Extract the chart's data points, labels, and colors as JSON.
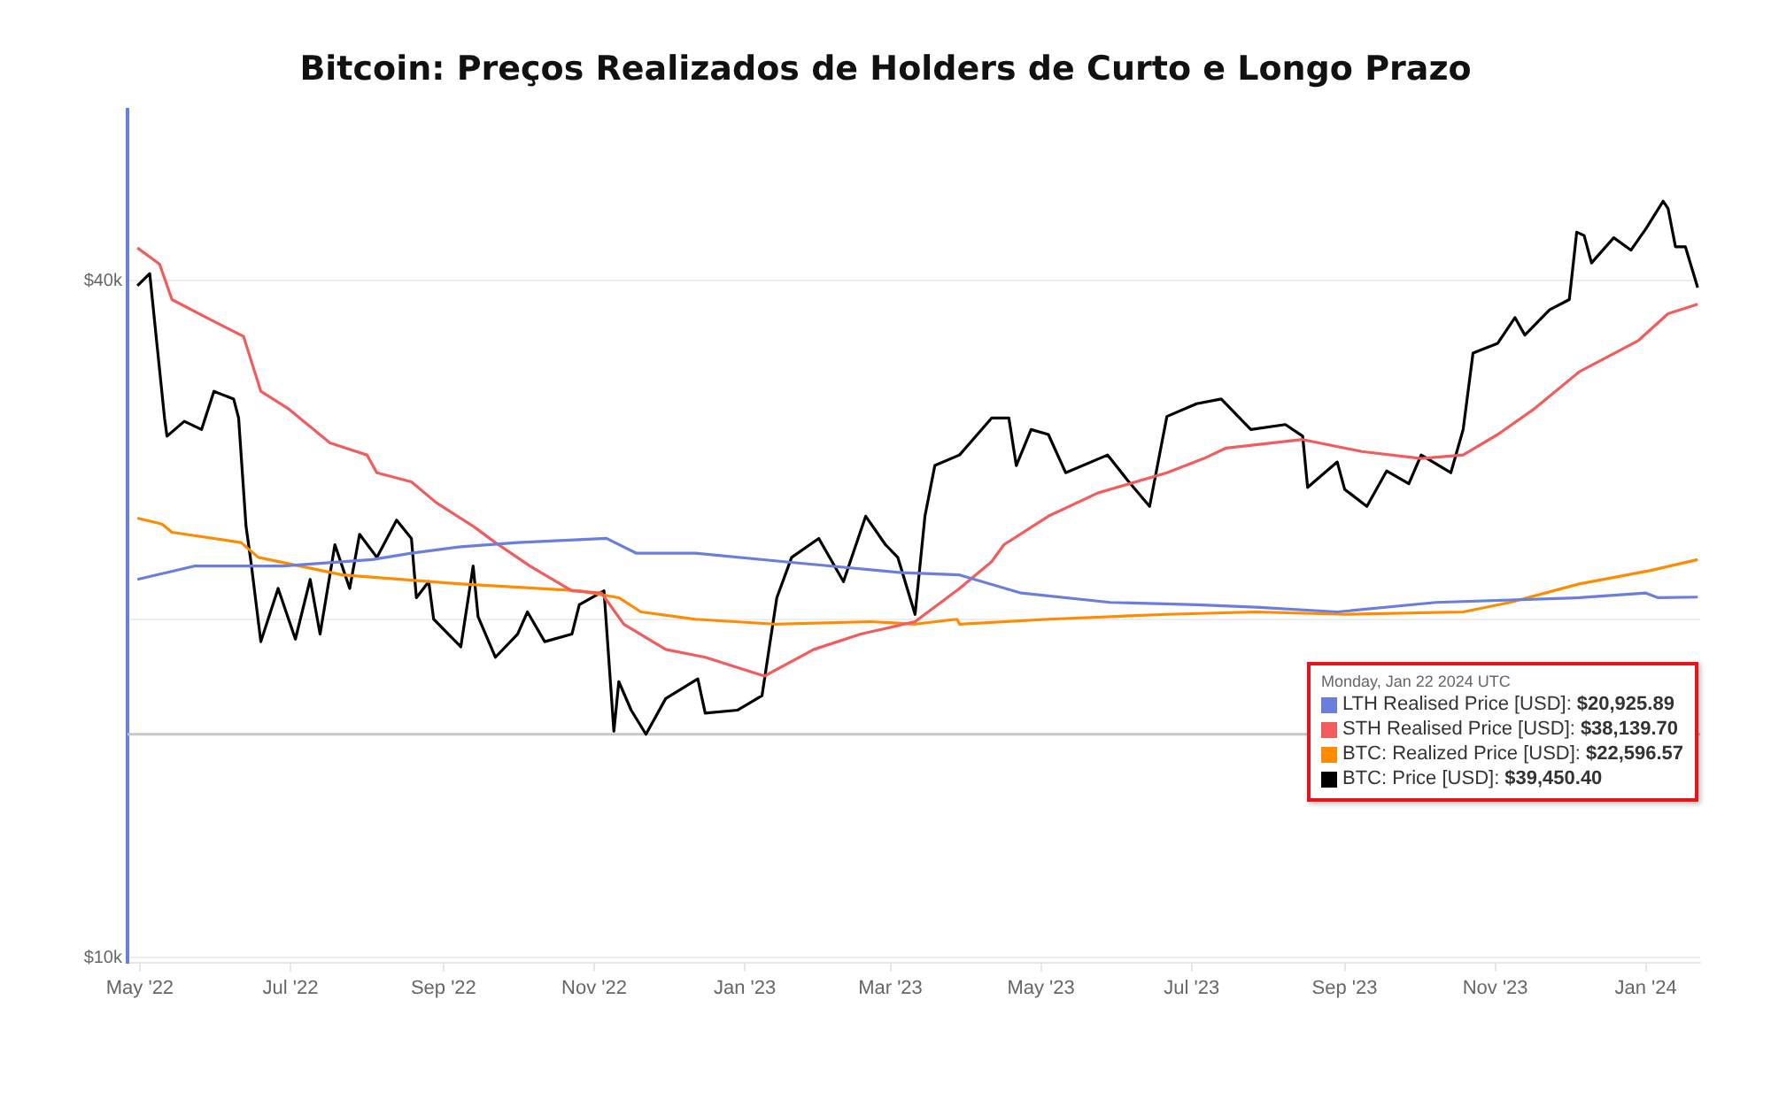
{
  "chart_data": {
    "type": "line",
    "title": "Bitcoin: Preços Realizados de Holders de Curto e Longo Prazo",
    "log": "y",
    "grid": "y",
    "legend": "bottom right",
    "marker": "none",
    "line_style": "solid",
    "xlim": [
      "2022-04-26",
      "2024-01-23"
    ],
    "xticks": [
      {
        "value": "2022-05-01",
        "label": "May '22"
      },
      {
        "value": "2022-07-01",
        "label": "Jul '22"
      },
      {
        "value": "2022-09-01",
        "label": "Sep '22"
      },
      {
        "value": "2022-11-01",
        "label": "Nov '22"
      },
      {
        "value": "2023-01-01",
        "label": "Jan '23"
      },
      {
        "value": "2023-03-01",
        "label": "Mar '23"
      },
      {
        "value": "2023-05-01",
        "label": "May '23"
      },
      {
        "value": "2023-07-01",
        "label": "Jul '23"
      },
      {
        "value": "2023-09-01",
        "label": "Sep '23"
      },
      {
        "value": "2023-11-01",
        "label": "Nov '23"
      },
      {
        "value": "2024-01-01",
        "label": "Jan '24"
      }
    ],
    "ylim": [
      9900,
      56800
    ],
    "yticks": [
      {
        "value": 10000,
        "label": "$10k"
      },
      {
        "value": 20000,
        "label": null
      },
      {
        "value": 40000,
        "label": "$40k"
      }
    ],
    "ref_lines": [
      {
        "axis": "y",
        "value": 15800,
        "label": null,
        "color": "#c8c8c8"
      }
    ],
    "annotations": [
      "Monday, Jan 22 2024 UTC",
      "$20,925.89",
      "$38,139.70",
      "$22,596.57",
      "$39,450.40"
    ],
    "series": [
      {
        "name": "LTH Realised Price [USD]:",
        "color": "#6a7fdb",
        "x": [
          "2022-04-30",
          "2022-05-23",
          "2022-06-28",
          "2022-08-03",
          "2022-08-19",
          "2022-09-08",
          "2022-10-01",
          "2022-11-06",
          "2022-11-18",
          "2022-12-12",
          "2023-01-17",
          "2023-03-06",
          "2023-03-29",
          "2023-04-23",
          "2023-05-29",
          "2023-07-03",
          "2023-07-27",
          "2023-08-29",
          "2023-10-08",
          "2023-12-05",
          "2024-01-01",
          "2024-01-06",
          "2024-01-22"
        ],
        "values": [
          21700,
          22300,
          22300,
          22600,
          22900,
          23200,
          23400,
          23600,
          22900,
          22900,
          22500,
          22000,
          21900,
          21100,
          20700,
          20600,
          20500,
          20300,
          20700,
          20900,
          21100,
          20900,
          20925.89
        ]
      },
      {
        "name": "STH Realised Price [USD]:",
        "color": "#f25c5c",
        "x": [
          "2022-04-30",
          "2022-05-09",
          "2022-05-14",
          "2022-05-29",
          "2022-06-12",
          "2022-06-19",
          "2022-06-30",
          "2022-07-17",
          "2022-08-01",
          "2022-08-05",
          "2022-08-19",
          "2022-08-29",
          "2022-09-13",
          "2022-09-22",
          "2022-10-06",
          "2022-10-23",
          "2022-11-04",
          "2022-11-13",
          "2022-11-30",
          "2022-12-16",
          "2023-01-09",
          "2023-01-29",
          "2023-02-17",
          "2023-03-11",
          "2023-03-29",
          "2023-04-11",
          "2023-04-16",
          "2023-05-04",
          "2023-05-24",
          "2023-06-21",
          "2023-07-06",
          "2023-07-15",
          "2023-08-15",
          "2023-09-08",
          "2023-10-02",
          "2023-10-19",
          "2023-11-02",
          "2023-11-17",
          "2023-12-05",
          "2023-12-29",
          "2024-01-10",
          "2024-01-22"
        ],
        "values": [
          42800,
          41400,
          38500,
          37000,
          35700,
          31900,
          30800,
          28700,
          28000,
          27000,
          26500,
          25400,
          24200,
          23400,
          22300,
          21200,
          21100,
          19800,
          18800,
          18500,
          17800,
          18800,
          19400,
          19900,
          21300,
          22500,
          23300,
          24700,
          25900,
          27000,
          27800,
          28400,
          28900,
          28200,
          27800,
          28000,
          29200,
          30800,
          33200,
          35400,
          37400,
          38139.7
        ]
      },
      {
        "name": "BTC: Realized Price [USD]:",
        "color": "#ff8c00",
        "x": [
          "2022-04-30",
          "2022-05-10",
          "2022-05-14",
          "2022-06-11",
          "2022-06-18",
          "2022-07-22",
          "2022-09-08",
          "2022-10-26",
          "2022-11-11",
          "2022-11-20",
          "2022-12-12",
          "2023-01-13",
          "2023-02-21",
          "2023-03-11",
          "2023-03-28",
          "2023-03-29",
          "2023-05-04",
          "2023-06-21",
          "2023-07-27",
          "2023-09-01",
          "2023-10-19",
          "2023-11-07",
          "2023-12-05",
          "2024-01-03",
          "2024-01-22"
        ],
        "values": [
          24600,
          24300,
          23900,
          23400,
          22700,
          21900,
          21500,
          21200,
          20900,
          20300,
          20000,
          19800,
          19900,
          19800,
          20000,
          19800,
          20000,
          20200,
          20300,
          20200,
          20300,
          20700,
          21500,
          22100,
          22596.57
        ]
      },
      {
        "name": "BTC: Price [USD]:",
        "color": "#000000",
        "x": [
          "2022-04-30",
          "2022-05-05",
          "2022-05-08",
          "2022-05-11",
          "2022-05-12",
          "2022-05-19",
          "2022-05-26",
          "2022-05-31",
          "2022-06-08",
          "2022-06-10",
          "2022-06-13",
          "2022-06-15",
          "2022-06-19",
          "2022-06-26",
          "2022-07-03",
          "2022-07-09",
          "2022-07-13",
          "2022-07-19",
          "2022-07-25",
          "2022-07-29",
          "2022-08-05",
          "2022-08-13",
          "2022-08-19",
          "2022-08-21",
          "2022-08-26",
          "2022-08-28",
          "2022-09-08",
          "2022-09-13",
          "2022-09-15",
          "2022-09-22",
          "2022-10-01",
          "2022-10-05",
          "2022-10-12",
          "2022-10-23",
          "2022-10-26",
          "2022-11-05",
          "2022-11-09",
          "2022-11-11",
          "2022-11-16",
          "2022-11-22",
          "2022-11-30",
          "2022-12-13",
          "2022-12-16",
          "2022-12-29",
          "2023-01-08",
          "2023-01-14",
          "2023-01-20",
          "2023-01-31",
          "2023-02-10",
          "2023-02-19",
          "2023-02-27",
          "2023-03-04",
          "2023-03-11",
          "2023-03-15",
          "2023-03-19",
          "2023-03-29",
          "2023-04-11",
          "2023-04-18",
          "2023-04-21",
          "2023-04-27",
          "2023-05-04",
          "2023-05-11",
          "2023-05-28",
          "2023-06-05",
          "2023-06-14",
          "2023-06-21",
          "2023-07-03",
          "2023-07-13",
          "2023-07-25",
          "2023-08-08",
          "2023-08-15",
          "2023-08-17",
          "2023-08-29",
          "2023-09-01",
          "2023-09-10",
          "2023-09-18",
          "2023-09-27",
          "2023-10-02",
          "2023-10-14",
          "2023-10-19",
          "2023-10-23",
          "2023-11-02",
          "2023-11-09",
          "2023-11-13",
          "2023-11-23",
          "2023-12-01",
          "2023-12-04",
          "2023-12-07",
          "2023-12-10",
          "2023-12-19",
          "2023-12-26",
          "2024-01-01",
          "2024-01-08",
          "2024-01-10",
          "2024-01-13",
          "2024-01-17",
          "2024-01-22"
        ],
        "values": [
          39600,
          40600,
          35000,
          30200,
          29100,
          30000,
          29500,
          31900,
          31400,
          30200,
          24200,
          22500,
          19100,
          21300,
          19200,
          21700,
          19400,
          23300,
          21300,
          23800,
          22700,
          24500,
          23600,
          20900,
          21600,
          20000,
          18900,
          22300,
          20100,
          18500,
          19400,
          20300,
          19100,
          19400,
          20600,
          21200,
          15900,
          17600,
          16600,
          15800,
          17000,
          17700,
          16500,
          16600,
          17100,
          20900,
          22700,
          23600,
          21600,
          24700,
          23300,
          22700,
          20200,
          24700,
          27400,
          28000,
          30200,
          30200,
          27400,
          29500,
          29200,
          27000,
          28000,
          26600,
          25200,
          30300,
          31100,
          31400,
          29500,
          29800,
          29100,
          26200,
          27600,
          26100,
          25200,
          27100,
          26400,
          28000,
          27000,
          29500,
          34500,
          35200,
          37100,
          35800,
          37700,
          38500,
          44200,
          43900,
          41500,
          43700,
          42600,
          44500,
          47100,
          46400,
          42900,
          42900,
          39450.4
        ]
      }
    ]
  }
}
